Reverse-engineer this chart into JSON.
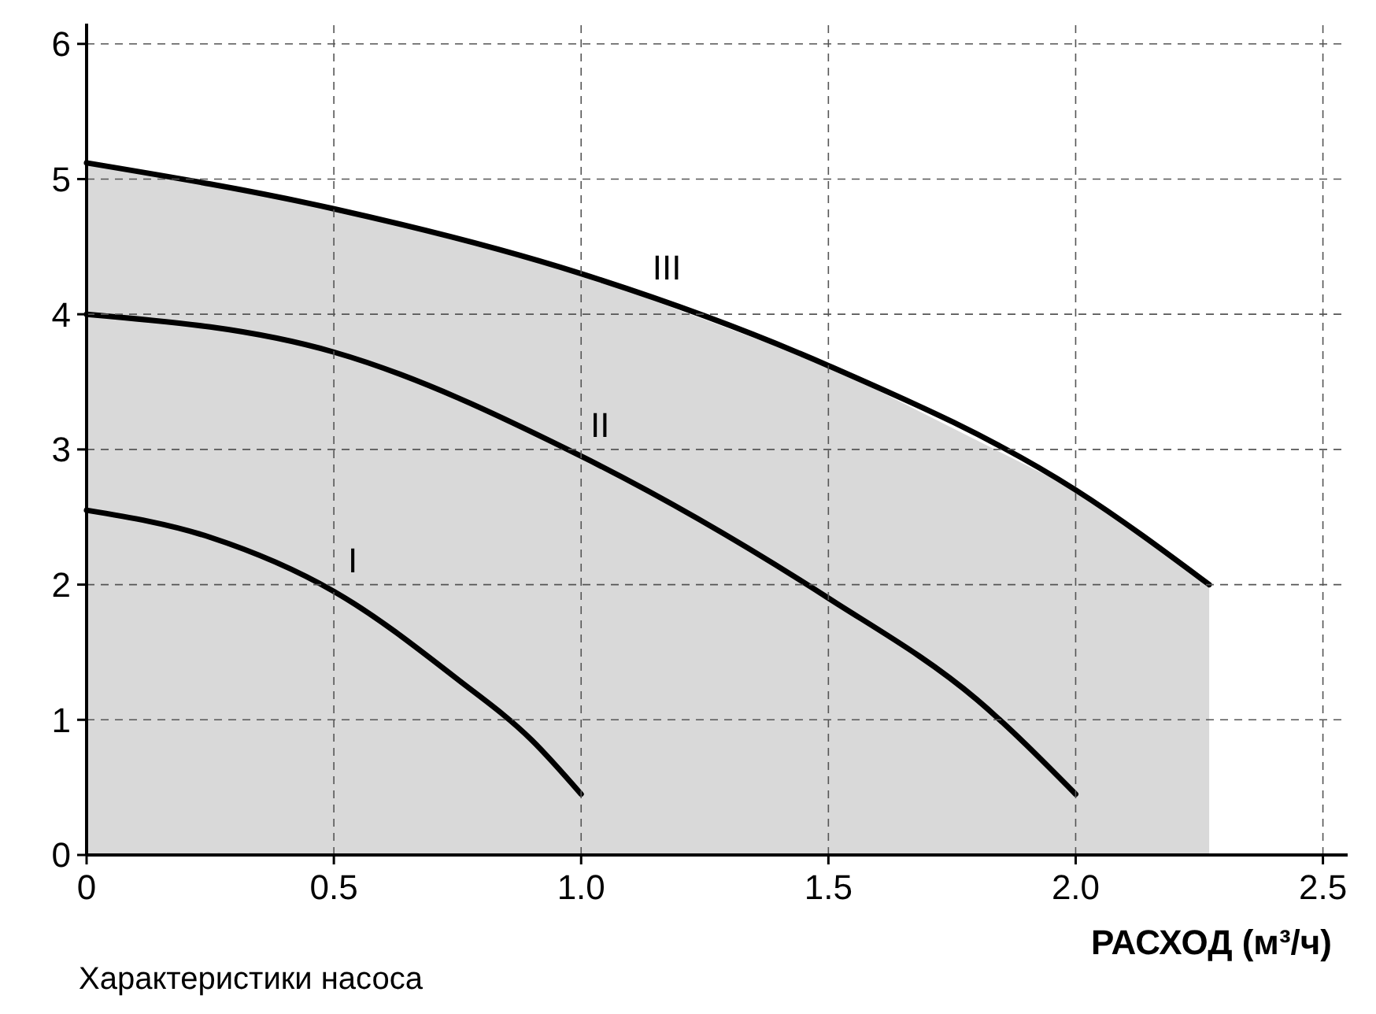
{
  "chart_data": {
    "type": "line",
    "xlabel": "РАСХОД (м³/ч)",
    "xlim": [
      0,
      2.55
    ],
    "ylim": [
      0,
      6.15
    ],
    "xticks": [
      0,
      {
        "value": 0.5,
        "label": "0.5"
      },
      {
        "value": 1,
        "label": "1.0"
      },
      {
        "value": 1.5,
        "label": "1.5"
      },
      {
        "value": 2,
        "label": "2.0"
      },
      {
        "value": 2.5,
        "label": "2.5"
      }
    ],
    "yticks": [
      0,
      1,
      2,
      3,
      4,
      5,
      6
    ],
    "grid": true,
    "line_style": "solid",
    "series": [
      {
        "name": "I",
        "color": "#000000",
        "x": [
          0,
          0.25,
          0.5,
          0.75,
          0.9,
          1.0
        ],
        "values": [
          2.55,
          2.35,
          1.95,
          1.3,
          0.85,
          0.45
        ]
      },
      {
        "name": "II",
        "color": "#000000",
        "x": [
          0,
          0.5,
          1.0,
          1.5,
          1.8,
          2.0
        ],
        "values": [
          4.0,
          3.72,
          2.95,
          1.9,
          1.15,
          0.45
        ]
      },
      {
        "name": "III",
        "type": "area",
        "color": "#000000",
        "x": [
          0,
          0.5,
          1.0,
          1.5,
          2.0,
          2.27
        ],
        "values": [
          5.12,
          4.78,
          4.3,
          3.62,
          2.7,
          2.0
        ]
      }
    ],
    "annotations": [
      "Характеристики насоса"
    ]
  }
}
